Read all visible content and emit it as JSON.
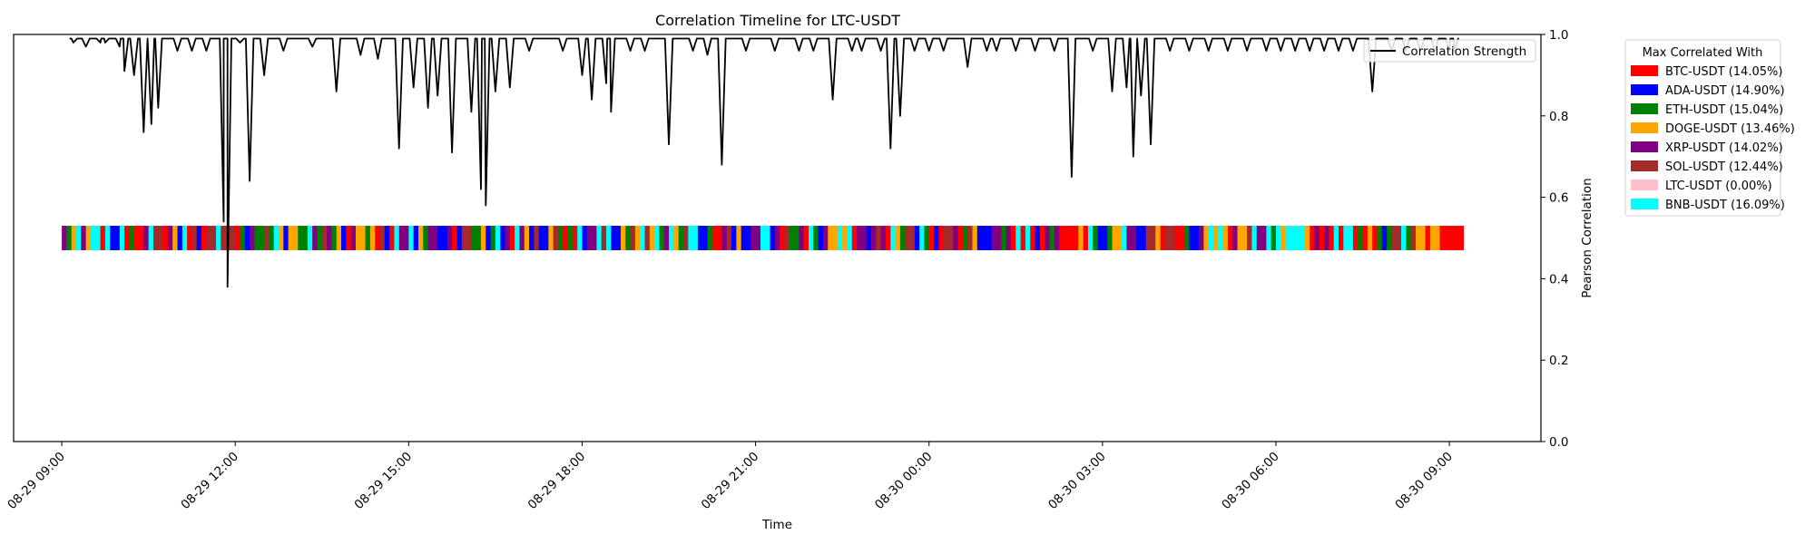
{
  "chart_data": {
    "type": "line",
    "title": "Correlation Timeline for LTC-USDT",
    "xlabel": "Time",
    "ylabel": "Pearson Correlation",
    "ylim": [
      0,
      1
    ],
    "y_ticks": [
      "0.0",
      "0.2",
      "0.4",
      "0.6",
      "0.8",
      "1.0"
    ],
    "x_range": [
      "2024-08-29 08:10",
      "2024-08-30 10:35"
    ],
    "x_ticks": [
      {
        "t": "2024-08-29 09:00",
        "label": "08-29 09:00"
      },
      {
        "t": "2024-08-29 12:00",
        "label": "08-29 12:00"
      },
      {
        "t": "2024-08-29 15:00",
        "label": "08-29 15:00"
      },
      {
        "t": "2024-08-29 18:00",
        "label": "08-29 18:00"
      },
      {
        "t": "2024-08-29 21:00",
        "label": "08-29 21:00"
      },
      {
        "t": "2024-08-30 00:00",
        "label": "08-30 00:00"
      },
      {
        "t": "2024-08-30 03:00",
        "label": "08-30 03:00"
      },
      {
        "t": "2024-08-30 06:00",
        "label": "08-30 06:00"
      },
      {
        "t": "2024-08-30 09:00",
        "label": "08-30 09:00"
      }
    ],
    "grid": false,
    "series": [
      {
        "name": "Correlation Strength",
        "color": "#000000",
        "baseline": 0.99,
        "x_start": "2024-08-29 09:10",
        "x_end": "2024-08-30 09:10",
        "dips": [
          {
            "t": "2024-08-29 09:12",
            "y": 0.98
          },
          {
            "t": "2024-08-29 09:25",
            "y": 0.97
          },
          {
            "t": "2024-08-29 09:40",
            "y": 0.98
          },
          {
            "t": "2024-08-29 09:45",
            "y": 0.98
          },
          {
            "t": "2024-08-29 10:00",
            "y": 0.97
          },
          {
            "t": "2024-08-29 10:05",
            "y": 0.91
          },
          {
            "t": "2024-08-29 10:15",
            "y": 0.9
          },
          {
            "t": "2024-08-29 10:25",
            "y": 0.76
          },
          {
            "t": "2024-08-29 10:33",
            "y": 0.78
          },
          {
            "t": "2024-08-29 10:40",
            "y": 0.82
          },
          {
            "t": "2024-08-29 11:00",
            "y": 0.96
          },
          {
            "t": "2024-08-29 11:15",
            "y": 0.96
          },
          {
            "t": "2024-08-29 11:30",
            "y": 0.96
          },
          {
            "t": "2024-08-29 11:48",
            "y": 0.54
          },
          {
            "t": "2024-08-29 11:52",
            "y": 0.38
          },
          {
            "t": "2024-08-29 12:05",
            "y": 0.98
          },
          {
            "t": "2024-08-29 12:15",
            "y": 0.64
          },
          {
            "t": "2024-08-29 12:30",
            "y": 0.9
          },
          {
            "t": "2024-08-29 12:50",
            "y": 0.96
          },
          {
            "t": "2024-08-29 13:20",
            "y": 0.97
          },
          {
            "t": "2024-08-29 13:45",
            "y": 0.86
          },
          {
            "t": "2024-08-29 14:10",
            "y": 0.95
          },
          {
            "t": "2024-08-29 14:28",
            "y": 0.94
          },
          {
            "t": "2024-08-29 14:50",
            "y": 0.72
          },
          {
            "t": "2024-08-29 15:05",
            "y": 0.87
          },
          {
            "t": "2024-08-29 15:20",
            "y": 0.82
          },
          {
            "t": "2024-08-29 15:30",
            "y": 0.85
          },
          {
            "t": "2024-08-29 15:45",
            "y": 0.71
          },
          {
            "t": "2024-08-29 16:05",
            "y": 0.81
          },
          {
            "t": "2024-08-29 16:15",
            "y": 0.62
          },
          {
            "t": "2024-08-29 16:20",
            "y": 0.58
          },
          {
            "t": "2024-08-29 16:30",
            "y": 0.86
          },
          {
            "t": "2024-08-29 16:45",
            "y": 0.87
          },
          {
            "t": "2024-08-29 17:05",
            "y": 0.96
          },
          {
            "t": "2024-08-29 17:40",
            "y": 0.96
          },
          {
            "t": "2024-08-29 18:00",
            "y": 0.9
          },
          {
            "t": "2024-08-29 18:10",
            "y": 0.84
          },
          {
            "t": "2024-08-29 18:25",
            "y": 0.88
          },
          {
            "t": "2024-08-29 18:30",
            "y": 0.81
          },
          {
            "t": "2024-08-29 18:50",
            "y": 0.96
          },
          {
            "t": "2024-08-29 19:05",
            "y": 0.96
          },
          {
            "t": "2024-08-29 19:30",
            "y": 0.73
          },
          {
            "t": "2024-08-29 19:55",
            "y": 0.96
          },
          {
            "t": "2024-08-29 20:10",
            "y": 0.95
          },
          {
            "t": "2024-08-29 20:25",
            "y": 0.68
          },
          {
            "t": "2024-08-29 20:50",
            "y": 0.96
          },
          {
            "t": "2024-08-29 21:20",
            "y": 0.96
          },
          {
            "t": "2024-08-29 21:45",
            "y": 0.96
          },
          {
            "t": "2024-08-29 22:00",
            "y": 0.96
          },
          {
            "t": "2024-08-29 22:20",
            "y": 0.84
          },
          {
            "t": "2024-08-29 22:40",
            "y": 0.96
          },
          {
            "t": "2024-08-29 22:50",
            "y": 0.96
          },
          {
            "t": "2024-08-29 23:10",
            "y": 0.96
          },
          {
            "t": "2024-08-29 23:20",
            "y": 0.72
          },
          {
            "t": "2024-08-29 23:30",
            "y": 0.8
          },
          {
            "t": "2024-08-29 23:45",
            "y": 0.96
          },
          {
            "t": "2024-08-30 00:00",
            "y": 0.96
          },
          {
            "t": "2024-08-30 00:15",
            "y": 0.96
          },
          {
            "t": "2024-08-30 00:40",
            "y": 0.92
          },
          {
            "t": "2024-08-30 01:00",
            "y": 0.96
          },
          {
            "t": "2024-08-30 01:10",
            "y": 0.96
          },
          {
            "t": "2024-08-30 01:30",
            "y": 0.96
          },
          {
            "t": "2024-08-30 01:50",
            "y": 0.96
          },
          {
            "t": "2024-08-30 02:10",
            "y": 0.96
          },
          {
            "t": "2024-08-30 02:28",
            "y": 0.65
          },
          {
            "t": "2024-08-30 02:50",
            "y": 0.96
          },
          {
            "t": "2024-08-30 03:10",
            "y": 0.86
          },
          {
            "t": "2024-08-30 03:25",
            "y": 0.87
          },
          {
            "t": "2024-08-30 03:32",
            "y": 0.7
          },
          {
            "t": "2024-08-30 03:40",
            "y": 0.85
          },
          {
            "t": "2024-08-30 03:50",
            "y": 0.73
          },
          {
            "t": "2024-08-30 04:10",
            "y": 0.96
          },
          {
            "t": "2024-08-30 04:30",
            "y": 0.96
          },
          {
            "t": "2024-08-30 04:50",
            "y": 0.96
          },
          {
            "t": "2024-08-30 05:10",
            "y": 0.96
          },
          {
            "t": "2024-08-30 05:30",
            "y": 0.96
          },
          {
            "t": "2024-08-30 05:50",
            "y": 0.96
          },
          {
            "t": "2024-08-30 06:05",
            "y": 0.96
          },
          {
            "t": "2024-08-30 06:20",
            "y": 0.96
          },
          {
            "t": "2024-08-30 06:35",
            "y": 0.96
          },
          {
            "t": "2024-08-30 06:50",
            "y": 0.96
          },
          {
            "t": "2024-08-30 07:05",
            "y": 0.96
          },
          {
            "t": "2024-08-30 07:20",
            "y": 0.96
          },
          {
            "t": "2024-08-30 07:40",
            "y": 0.86
          },
          {
            "t": "2024-08-30 08:00",
            "y": 0.96
          },
          {
            "t": "2024-08-30 08:15",
            "y": 0.96
          },
          {
            "t": "2024-08-30 08:30",
            "y": 0.96
          },
          {
            "t": "2024-08-30 08:45",
            "y": 0.96
          },
          {
            "t": "2024-08-30 09:00",
            "y": 0.96
          },
          {
            "t": "2024-08-30 09:05",
            "y": 0.96
          }
        ]
      }
    ],
    "max_correlated_strip": {
      "y_center": 0.5,
      "y_range": [
        0.47,
        0.53
      ],
      "x_start": "2024-08-29 09:00",
      "x_end": "2024-08-30 09:15",
      "end_block": {
        "from": "2024-08-30 08:55",
        "to": "2024-08-30 09:15",
        "pair": "BTC-USDT"
      }
    },
    "legend": {
      "line_position": "top-right",
      "categories_title": "Max Correlated With",
      "categories_position": "outside-right",
      "categories": [
        {
          "label": "BTC-USDT (14.05%)",
          "pair": "BTC-USDT",
          "share": 14.05,
          "color": "#ff0000"
        },
        {
          "label": "ADA-USDT (14.90%)",
          "pair": "ADA-USDT",
          "share": 14.9,
          "color": "#0000ff"
        },
        {
          "label": "ETH-USDT (15.04%)",
          "pair": "ETH-USDT",
          "share": 15.04,
          "color": "#008000"
        },
        {
          "label": "DOGE-USDT (13.46%)",
          "pair": "DOGE-USDT",
          "share": 13.46,
          "color": "#ffa500"
        },
        {
          "label": "XRP-USDT (14.02%)",
          "pair": "XRP-USDT",
          "share": 14.02,
          "color": "#800080"
        },
        {
          "label": "SOL-USDT (12.44%)",
          "pair": "SOL-USDT",
          "share": 12.44,
          "color": "#a52a2a"
        },
        {
          "label": "LTC-USDT (0.00%)",
          "pair": "LTC-USDT",
          "share": 0.0,
          "color": "#ffc0cb"
        },
        {
          "label": "BNB-USDT (16.09%)",
          "pair": "BNB-USDT",
          "share": 16.09,
          "color": "#00ffff"
        }
      ]
    }
  }
}
